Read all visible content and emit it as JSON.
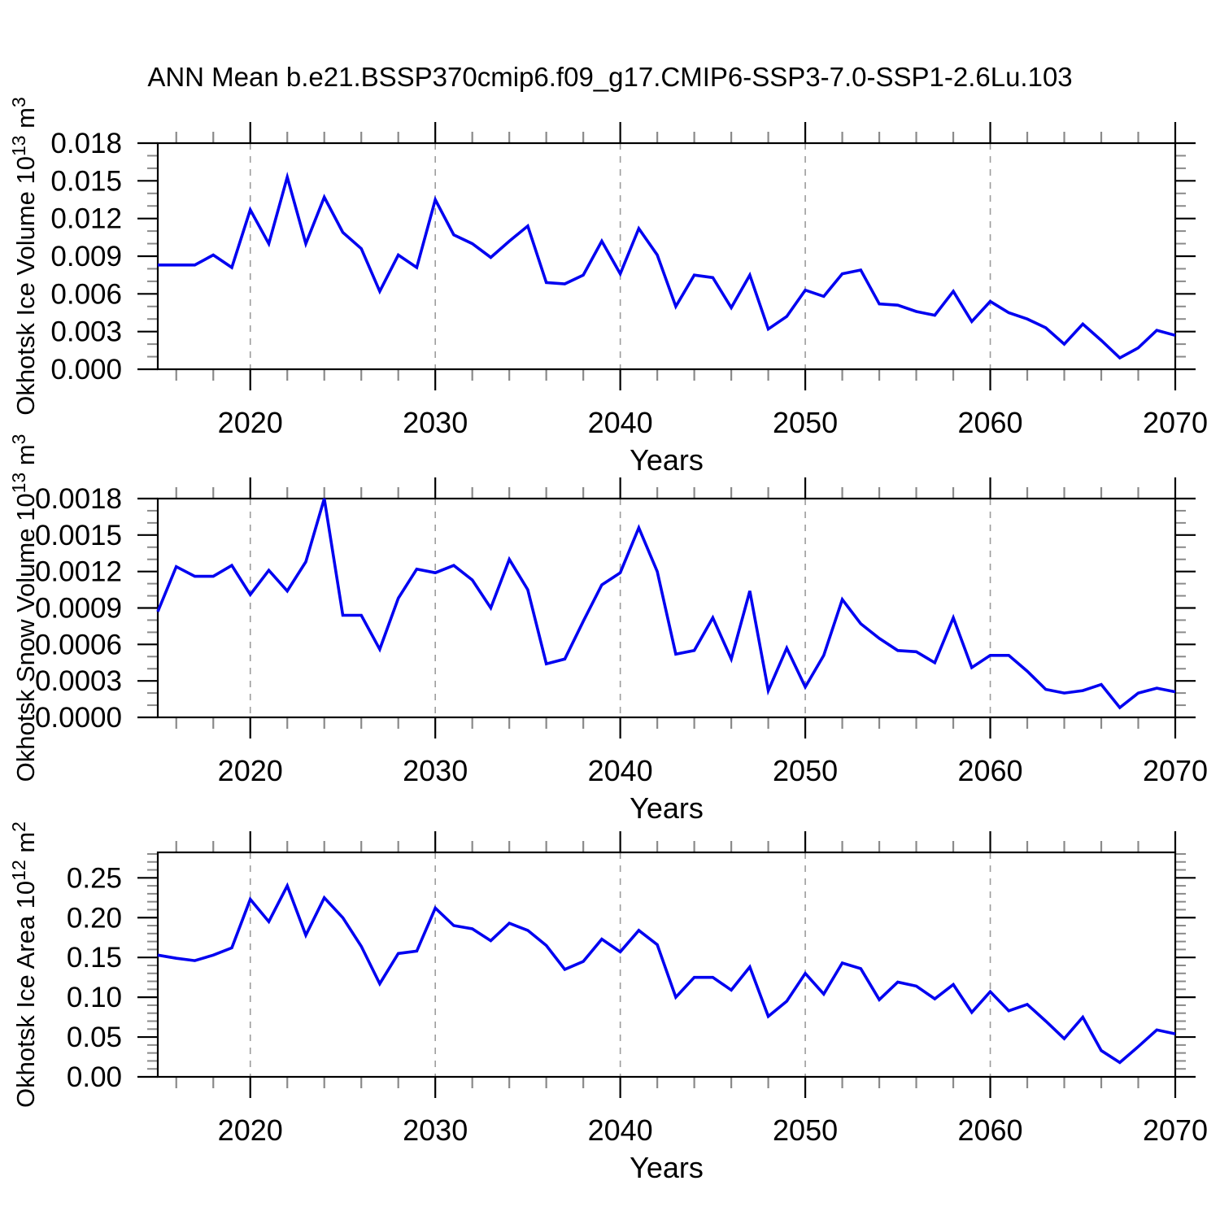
{
  "title": "ANN Mean b.e21.BSSP370cmip6.f09_g17.CMIP6-SSP3-7.0-SSP1-2.6Lu.103",
  "style": {
    "line_color": "#0000f0",
    "grid_color": "#9c9c9c",
    "axis_color": "#000000",
    "minor_tick_color": "#8a8a8a",
    "background": "#ffffff"
  },
  "x_axis": {
    "label": "Years",
    "range": [
      2015,
      2070
    ],
    "major_ticks": [
      2020,
      2030,
      2040,
      2050,
      2060,
      2070
    ],
    "major_tick_labels": [
      "2020",
      "2030",
      "2040",
      "2050",
      "2060",
      "2070"
    ],
    "minor_tick_step_years": 2,
    "gridline_years": [
      2020,
      2030,
      2040,
      2050,
      2060
    ]
  },
  "chart_data": [
    {
      "id": "ice-volume",
      "type": "line",
      "ylabel": "Okhotsk Ice Volume 10^13 m^3",
      "ylabel_parts": [
        {
          "text": "Okhotsk Ice Volume 10"
        },
        {
          "text": "13",
          "sup": true
        },
        {
          "text": " m"
        },
        {
          "text": "3",
          "sup": true
        }
      ],
      "xlabel": "Years",
      "ylim": [
        0,
        0.018
      ],
      "ytop_frame": 0.018,
      "ytick_step": 0.003,
      "yminor_step": 0.001,
      "ytick_labels": [
        "0.000",
        "0.003",
        "0.006",
        "0.009",
        "0.012",
        "0.015",
        "0.018"
      ],
      "grid": "vertical-dashed",
      "legend": "none",
      "years": [
        2015,
        2016,
        2017,
        2018,
        2019,
        2020,
        2021,
        2022,
        2023,
        2024,
        2025,
        2026,
        2027,
        2028,
        2029,
        2030,
        2031,
        2032,
        2033,
        2034,
        2035,
        2036,
        2037,
        2038,
        2039,
        2040,
        2041,
        2042,
        2043,
        2044,
        2045,
        2046,
        2047,
        2048,
        2049,
        2050,
        2051,
        2052,
        2053,
        2054,
        2055,
        2056,
        2057,
        2058,
        2059,
        2060,
        2061,
        2062,
        2063,
        2064,
        2065,
        2066,
        2067,
        2068,
        2069,
        2070
      ],
      "values": [
        0.0083,
        0.0083,
        0.0083,
        0.0091,
        0.0081,
        0.0127,
        0.01,
        0.0153,
        0.01,
        0.0137,
        0.0109,
        0.0096,
        0.0062,
        0.0091,
        0.0081,
        0.0135,
        0.0107,
        0.01,
        0.0089,
        0.0102,
        0.0114,
        0.0069,
        0.0068,
        0.0075,
        0.0102,
        0.0076,
        0.0112,
        0.0091,
        0.005,
        0.0075,
        0.0073,
        0.0049,
        0.0075,
        0.0032,
        0.0042,
        0.0063,
        0.0058,
        0.0076,
        0.0079,
        0.0052,
        0.0051,
        0.0046,
        0.0043,
        0.0062,
        0.0038,
        0.0054,
        0.0045,
        0.004,
        0.0033,
        0.002,
        0.0036,
        0.0023,
        0.0009,
        0.0017,
        0.0031,
        0.0027
      ]
    },
    {
      "id": "snow-volume",
      "type": "line",
      "ylabel": "Okhotsk Snow Volume 10^13 m^3",
      "ylabel_parts": [
        {
          "text": "Okhotsk Snow Volume 10"
        },
        {
          "text": "13",
          "sup": true
        },
        {
          "text": " m"
        },
        {
          "text": "3",
          "sup": true
        }
      ],
      "xlabel": "Years",
      "ylim": [
        0,
        0.0018
      ],
      "ytop_frame": 0.0018,
      "ytick_step": 0.0003,
      "yminor_step": 0.0001,
      "ytick_labels": [
        "0.0000",
        "0.0003",
        "0.0006",
        "0.0009",
        "0.0012",
        "0.0015",
        "0.0018"
      ],
      "grid": "vertical-dashed",
      "legend": "none",
      "years": [
        2015,
        2016,
        2017,
        2018,
        2019,
        2020,
        2021,
        2022,
        2023,
        2024,
        2025,
        2026,
        2027,
        2028,
        2029,
        2030,
        2031,
        2032,
        2033,
        2034,
        2035,
        2036,
        2037,
        2038,
        2039,
        2040,
        2041,
        2042,
        2043,
        2044,
        2045,
        2046,
        2047,
        2048,
        2049,
        2050,
        2051,
        2052,
        2053,
        2054,
        2055,
        2056,
        2057,
        2058,
        2059,
        2060,
        2061,
        2062,
        2063,
        2064,
        2065,
        2066,
        2067,
        2068,
        2069,
        2070
      ],
      "values": [
        0.00087,
        0.00124,
        0.00116,
        0.00116,
        0.00125,
        0.00101,
        0.00121,
        0.00104,
        0.00128,
        0.0018,
        0.00084,
        0.00084,
        0.00056,
        0.00098,
        0.00122,
        0.00119,
        0.00125,
        0.00113,
        0.0009,
        0.0013,
        0.00105,
        0.00044,
        0.00048,
        0.00079,
        0.00109,
        0.00119,
        0.00156,
        0.0012,
        0.00052,
        0.00055,
        0.00082,
        0.00048,
        0.00104,
        0.00022,
        0.00057,
        0.00025,
        0.00051,
        0.00097,
        0.00077,
        0.00065,
        0.00055,
        0.00054,
        0.00045,
        0.00082,
        0.00041,
        0.00051,
        0.00051,
        0.00038,
        0.00023,
        0.0002,
        0.00022,
        0.00027,
        8e-05,
        0.0002,
        0.00024,
        0.00021
      ]
    },
    {
      "id": "ice-area",
      "type": "line",
      "ylabel": "Okhotsk Ice Area 10^12 m^2",
      "ylabel_parts": [
        {
          "text": "Okhotsk Ice Area 10"
        },
        {
          "text": "12",
          "sup": true
        },
        {
          "text": " m"
        },
        {
          "text": "2",
          "sup": true
        }
      ],
      "xlabel": "Years",
      "ylim": [
        0,
        0.25
      ],
      "ytop_frame": 0.282,
      "ytick_step": 0.05,
      "yminor_step": 0.01,
      "ytick_labels": [
        "0.00",
        "0.05",
        "0.10",
        "0.15",
        "0.20",
        "0.25"
      ],
      "grid": "vertical-dashed",
      "legend": "none",
      "years": [
        2015,
        2016,
        2017,
        2018,
        2019,
        2020,
        2021,
        2022,
        2023,
        2024,
        2025,
        2026,
        2027,
        2028,
        2029,
        2030,
        2031,
        2032,
        2033,
        2034,
        2035,
        2036,
        2037,
        2038,
        2039,
        2040,
        2041,
        2042,
        2043,
        2044,
        2045,
        2046,
        2047,
        2048,
        2049,
        2050,
        2051,
        2052,
        2053,
        2054,
        2055,
        2056,
        2057,
        2058,
        2059,
        2060,
        2061,
        2062,
        2063,
        2064,
        2065,
        2066,
        2067,
        2068,
        2069,
        2070
      ],
      "values": [
        0.153,
        0.149,
        0.146,
        0.153,
        0.162,
        0.223,
        0.195,
        0.24,
        0.178,
        0.225,
        0.2,
        0.164,
        0.117,
        0.155,
        0.158,
        0.212,
        0.19,
        0.186,
        0.171,
        0.193,
        0.184,
        0.165,
        0.135,
        0.145,
        0.173,
        0.157,
        0.184,
        0.166,
        0.1,
        0.125,
        0.125,
        0.109,
        0.138,
        0.076,
        0.095,
        0.13,
        0.104,
        0.143,
        0.136,
        0.097,
        0.119,
        0.114,
        0.098,
        0.116,
        0.081,
        0.107,
        0.083,
        0.091,
        0.07,
        0.048,
        0.075,
        0.033,
        0.018,
        0.038,
        0.059,
        0.054
      ]
    }
  ]
}
